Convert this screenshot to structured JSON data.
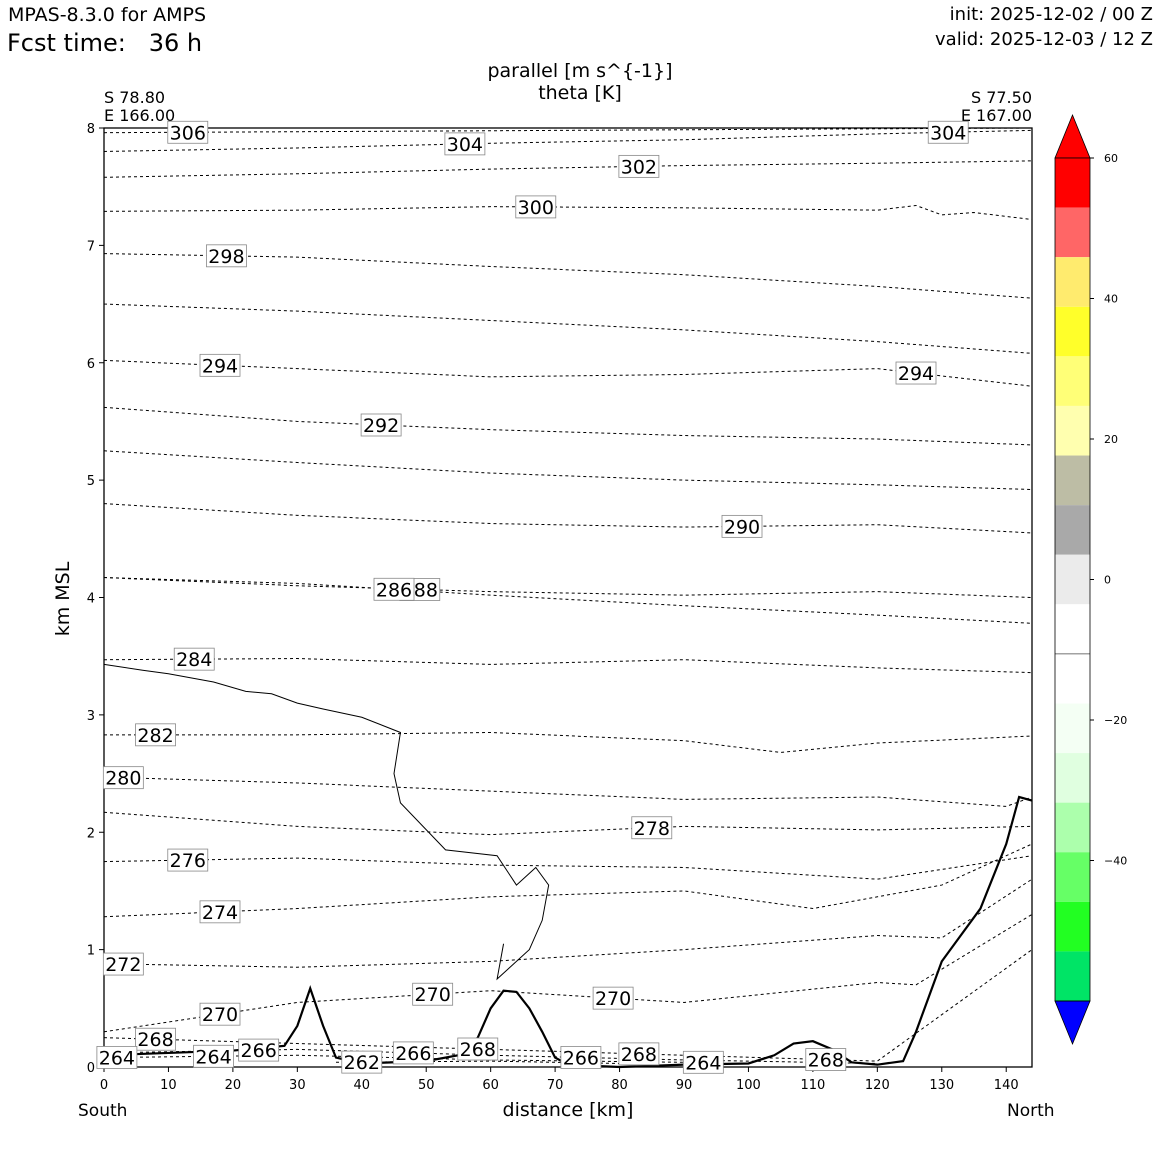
{
  "header": {
    "model": "MPAS-8.3.0 for AMPS",
    "fcst_label": "Fcst time:",
    "fcst_value": "36 h",
    "init": "init: 2025-12-02 / 00 Z",
    "valid": "valid: 2025-12-03 / 12 Z"
  },
  "chart_data": {
    "type": "cross-section",
    "title": "parallel [m s^{-1}]",
    "subtitle": "theta [K]",
    "xlabel": "distance [km]",
    "ylabel": "km MSL",
    "xlim": [
      0,
      144
    ],
    "ylim": [
      0,
      8
    ],
    "x_ticks": [
      "0",
      "10",
      "20",
      "30",
      "40",
      "50",
      "60",
      "70",
      "80",
      "90",
      "100",
      "110",
      "120",
      "130",
      "140"
    ],
    "y_ticks": [
      "0",
      "1",
      "2",
      "3",
      "4",
      "5",
      "6",
      "7",
      "8"
    ],
    "start_point": {
      "lat": "S 78.80",
      "lon": "E 166.00"
    },
    "end_point": {
      "lat": "S 77.50",
      "lon": "E 167.00"
    },
    "left_end": "South",
    "right_end": "North",
    "theta_contours": [
      {
        "value": "306",
        "x": [
          0,
          144
        ],
        "y": [
          7.96,
          8.0
        ]
      },
      {
        "value": "304",
        "x": [
          0,
          30,
          60,
          90,
          120,
          144
        ],
        "y": [
          7.8,
          7.83,
          7.87,
          7.9,
          7.95,
          7.98
        ]
      },
      {
        "value": "302",
        "x": [
          0,
          30,
          60,
          90,
          120,
          144
        ],
        "y": [
          7.58,
          7.61,
          7.65,
          7.68,
          7.7,
          7.72
        ]
      },
      {
        "value": "300",
        "x": [
          0,
          30,
          60,
          90,
          120,
          126,
          130,
          135,
          144
        ],
        "y": [
          7.29,
          7.3,
          7.33,
          7.32,
          7.3,
          7.34,
          7.26,
          7.28,
          7.22
        ]
      },
      {
        "value": "298",
        "x": [
          0,
          30,
          60,
          90,
          120,
          144
        ],
        "y": [
          6.93,
          6.9,
          6.82,
          6.75,
          6.65,
          6.55
        ]
      },
      {
        "value": "",
        "x": [
          0,
          30,
          60,
          90,
          120,
          144
        ],
        "y": [
          6.5,
          6.44,
          6.36,
          6.28,
          6.18,
          6.08
        ]
      },
      {
        "value": "294",
        "x": [
          0,
          30,
          60,
          90,
          120,
          144
        ],
        "y": [
          6.02,
          5.95,
          5.88,
          5.9,
          5.95,
          5.8
        ]
      },
      {
        "value": "292",
        "x": [
          0,
          30,
          60,
          90,
          120,
          144
        ],
        "y": [
          5.62,
          5.5,
          5.43,
          5.38,
          5.35,
          5.3
        ]
      },
      {
        "value": "",
        "x": [
          0,
          30,
          60,
          90,
          120,
          144
        ],
        "y": [
          5.25,
          5.15,
          5.06,
          5.0,
          4.96,
          4.92
        ]
      },
      {
        "value": "290",
        "x": [
          0,
          30,
          60,
          90,
          120,
          144
        ],
        "y": [
          4.8,
          4.7,
          4.63,
          4.6,
          4.62,
          4.55
        ]
      },
      {
        "value": "288",
        "x": [
          0,
          30,
          60,
          90,
          120,
          144
        ],
        "y": [
          4.17,
          4.1,
          4.05,
          4.02,
          4.05,
          4.0
        ]
      },
      {
        "value": "286",
        "x": [
          0,
          30,
          60,
          90,
          120,
          144
        ],
        "y": [
          4.17,
          4.12,
          4.02,
          3.93,
          3.85,
          3.78
        ]
      },
      {
        "value": "284",
        "x": [
          0,
          30,
          60,
          90,
          120,
          144
        ],
        "y": [
          3.47,
          3.48,
          3.43,
          3.47,
          3.4,
          3.36
        ]
      },
      {
        "value": "282",
        "x": [
          0,
          30,
          60,
          90,
          105,
          120,
          144
        ],
        "y": [
          2.83,
          2.83,
          2.85,
          2.78,
          2.68,
          2.76,
          2.82
        ]
      },
      {
        "value": "280",
        "x": [
          0,
          30,
          60,
          90,
          120,
          140,
          144
        ],
        "y": [
          2.47,
          2.42,
          2.35,
          2.28,
          2.3,
          2.22,
          2.3
        ]
      },
      {
        "value": "278",
        "x": [
          0,
          30,
          60,
          90,
          120,
          144
        ],
        "y": [
          2.17,
          2.05,
          1.98,
          2.05,
          2.02,
          2.05
        ]
      },
      {
        "value": "276",
        "x": [
          0,
          30,
          60,
          90,
          120,
          144
        ],
        "y": [
          1.75,
          1.78,
          1.72,
          1.7,
          1.6,
          1.8
        ]
      },
      {
        "value": "274",
        "x": [
          0,
          30,
          60,
          90,
          110,
          130,
          144
        ],
        "y": [
          1.28,
          1.35,
          1.45,
          1.5,
          1.35,
          1.55,
          1.9
        ]
      },
      {
        "value": "272",
        "x": [
          0,
          30,
          60,
          90,
          120,
          130,
          144
        ],
        "y": [
          0.88,
          0.85,
          0.9,
          1.0,
          1.12,
          1.1,
          1.6
        ]
      },
      {
        "value": "270",
        "x": [
          0,
          30,
          60,
          90,
          120,
          126,
          144
        ],
        "y": [
          0.3,
          0.55,
          0.65,
          0.55,
          0.72,
          0.7,
          1.3
        ]
      },
      {
        "value": "268",
        "x": [
          0,
          30,
          60,
          90,
          120,
          144
        ],
        "y": [
          0.25,
          0.2,
          0.15,
          0.1,
          0.05,
          1.0
        ]
      },
      {
        "value": "266",
        "x": [
          0,
          30,
          60,
          90,
          120
        ],
        "y": [
          0.12,
          0.15,
          0.1,
          0.06,
          0.03
        ]
      },
      {
        "value": "264",
        "x": [
          0,
          30,
          60,
          90
        ],
        "y": [
          0.08,
          0.1,
          0.06,
          0.04
        ]
      },
      {
        "value": "262",
        "x": [
          36,
          60,
          80
        ],
        "y": [
          0.04,
          0.05,
          0.03
        ]
      }
    ],
    "parallel_zero_contour": [
      {
        "x": [
          0,
          6,
          10,
          17,
          22,
          26,
          30,
          34,
          40,
          46,
          45,
          46,
          53,
          61,
          64,
          67,
          69,
          68,
          66,
          63,
          61,
          62
        ],
        "y": [
          3.43,
          3.38,
          3.35,
          3.28,
          3.2,
          3.18,
          3.1,
          3.05,
          2.98,
          2.85,
          2.5,
          2.25,
          1.85,
          1.8,
          1.55,
          1.7,
          1.55,
          1.25,
          1.0,
          0.85,
          0.75,
          1.05
        ]
      }
    ],
    "terrain": {
      "x": [
        0,
        10,
        20,
        28,
        30,
        32,
        34,
        36,
        40,
        50,
        55,
        58,
        60,
        62,
        64,
        66,
        68,
        70,
        72,
        76,
        80,
        90,
        100,
        104,
        107,
        110,
        113,
        116,
        120,
        124,
        126,
        128,
        130,
        132,
        136,
        140,
        142,
        144
      ],
      "y": [
        0.1,
        0.12,
        0.14,
        0.18,
        0.35,
        0.67,
        0.35,
        0.08,
        0.03,
        0.05,
        0.1,
        0.25,
        0.5,
        0.65,
        0.64,
        0.5,
        0.3,
        0.08,
        0.02,
        0.01,
        0.0,
        0.02,
        0.03,
        0.1,
        0.2,
        0.22,
        0.15,
        0.04,
        0.02,
        0.05,
        0.3,
        0.6,
        0.9,
        1.05,
        1.35,
        1.9,
        2.3,
        2.27
      ]
    },
    "colorbar": {
      "levels": [
        "60",
        "40",
        "20",
        "0",
        "−20",
        "−40"
      ],
      "colors": [
        "#ff0000",
        "#ff6666",
        "#ffeb6e",
        "#ffff2a",
        "#ffff77",
        "#ffffaf",
        "#bdbda5",
        "#a9a9a9",
        "#ebebeb",
        "#ffffff",
        "#ffffff",
        "#f4fff4",
        "#e0ffe0",
        "#acffac",
        "#66ff66",
        "#22ff22",
        "#00e466",
        "#00cdcd",
        "#0000ff"
      ]
    }
  }
}
